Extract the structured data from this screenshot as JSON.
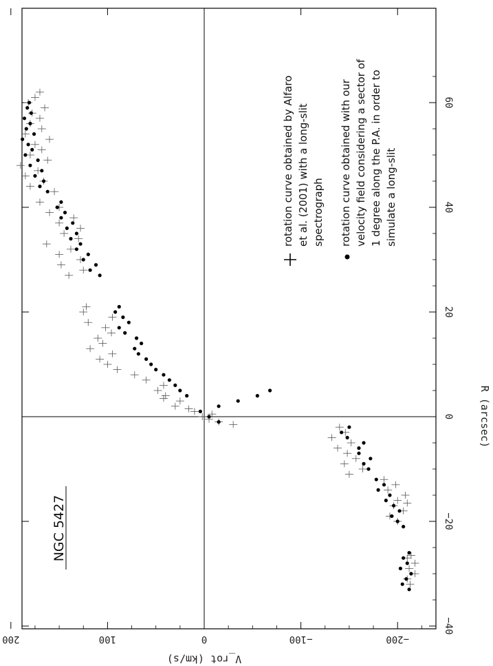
{
  "chart_data": {
    "type": "scatter",
    "title": "NGC 5427",
    "xlabel": "R (arcsec)",
    "ylabel": "V_rot (km/s)",
    "xlim": [
      -40,
      70
    ],
    "ylim": [
      -240,
      200
    ],
    "x_ticks": [
      "−40",
      "−20",
      "0",
      "20",
      "40",
      "60"
    ],
    "x_tick_values": [
      -40,
      -20,
      0,
      20,
      40,
      60
    ],
    "y_ticks": [
      "200",
      "100",
      "0",
      "−100",
      "−200"
    ],
    "y_tick_values": [
      200,
      100,
      0,
      -100,
      -200
    ],
    "legend": {
      "placement": "upper-right",
      "entries": [
        {
          "marker": "cross",
          "lines": [
            "rotation curve obtained by Alfaro",
            "et al. (2001) with a long-slit",
            "spectrograph"
          ]
        },
        {
          "marker": "dot",
          "lines": [
            "rotation curve obtained with our",
            "velocity field considering a sector of",
            "1 degree along the P.A. in order to",
            "simulate a long-slit"
          ]
        }
      ]
    },
    "series": [
      {
        "marker": "cross",
        "points": [
          [
            -32,
            -213
          ],
          [
            -31,
            -210
          ],
          [
            -30,
            -218
          ],
          [
            -29,
            -212
          ],
          [
            -28,
            -218
          ],
          [
            -27,
            -210
          ],
          [
            -26.5,
            -214
          ],
          [
            -20,
            -200
          ],
          [
            -19,
            -192
          ],
          [
            -18,
            -206
          ],
          [
            -17,
            -196
          ],
          [
            -16.5,
            -210
          ],
          [
            -16,
            -200
          ],
          [
            -15,
            -208
          ],
          [
            -14,
            -190
          ],
          [
            -13,
            -198
          ],
          [
            -12,
            -186
          ],
          [
            -11,
            -150
          ],
          [
            -10,
            -164
          ],
          [
            -9,
            -145
          ],
          [
            -8,
            -157
          ],
          [
            -7,
            -148
          ],
          [
            -6,
            -138
          ],
          [
            -5,
            -152
          ],
          [
            -4,
            -132
          ],
          [
            -3,
            -146
          ],
          [
            -2,
            -140
          ],
          [
            -1.5,
            -30
          ],
          [
            -1,
            -15
          ],
          [
            -0.5,
            -5
          ],
          [
            0,
            2
          ],
          [
            0.5,
            -8
          ],
          [
            1,
            10
          ],
          [
            1.5,
            16
          ],
          [
            2,
            30
          ],
          [
            3,
            25
          ],
          [
            3.5,
            42
          ],
          [
            4,
            40
          ],
          [
            5,
            48
          ],
          [
            6,
            42
          ],
          [
            7,
            60
          ],
          [
            8,
            72
          ],
          [
            9,
            90
          ],
          [
            10,
            100
          ],
          [
            11,
            108
          ],
          [
            12,
            95
          ],
          [
            13,
            118
          ],
          [
            14,
            105
          ],
          [
            15,
            110
          ],
          [
            16,
            96
          ],
          [
            17,
            102
          ],
          [
            18,
            120
          ],
          [
            19,
            95
          ],
          [
            20,
            125
          ],
          [
            21,
            122
          ],
          [
            27,
            140
          ],
          [
            28,
            125
          ],
          [
            29,
            148
          ],
          [
            30,
            128
          ],
          [
            31,
            150
          ],
          [
            32,
            138
          ],
          [
            33,
            163
          ],
          [
            34,
            130
          ],
          [
            35,
            145
          ],
          [
            36,
            128
          ],
          [
            37,
            150
          ],
          [
            38,
            135
          ],
          [
            39,
            160
          ],
          [
            40,
            150
          ],
          [
            41,
            170
          ],
          [
            43,
            155
          ],
          [
            44,
            180
          ],
          [
            45,
            166
          ],
          [
            46,
            185
          ],
          [
            47,
            172
          ],
          [
            48,
            190
          ],
          [
            49,
            162
          ],
          [
            50,
            180
          ],
          [
            51,
            168
          ],
          [
            52,
            175
          ],
          [
            53,
            160
          ],
          [
            54,
            185
          ],
          [
            55,
            168
          ],
          [
            56,
            180
          ],
          [
            57,
            170
          ],
          [
            58,
            178
          ],
          [
            59,
            165
          ],
          [
            60,
            182
          ],
          [
            61,
            175
          ],
          [
            62,
            170
          ]
        ]
      },
      {
        "marker": "dot",
        "points": [
          [
            -33,
            -212
          ],
          [
            -32,
            -205
          ],
          [
            -31,
            -209
          ],
          [
            -30,
            -214
          ],
          [
            -29,
            -203
          ],
          [
            -28,
            -210
          ],
          [
            -27,
            -206
          ],
          [
            -26,
            -212
          ],
          [
            -21,
            -206
          ],
          [
            -20,
            -200
          ],
          [
            -19,
            -194
          ],
          [
            -18,
            -202
          ],
          [
            -17,
            -196
          ],
          [
            -16,
            -188
          ],
          [
            -15,
            -192
          ],
          [
            -14,
            -180
          ],
          [
            -13,
            -186
          ],
          [
            -12,
            -178
          ],
          [
            -10,
            -170
          ],
          [
            -9,
            -165
          ],
          [
            -8,
            -172
          ],
          [
            -7,
            -160
          ],
          [
            -6,
            -160
          ],
          [
            -5,
            -165
          ],
          [
            -4,
            -148
          ],
          [
            -3,
            -142
          ],
          [
            -2,
            -150
          ],
          [
            -1,
            -15
          ],
          [
            0,
            -5
          ],
          [
            1,
            4
          ],
          [
            2,
            -15
          ],
          [
            3,
            -35
          ],
          [
            4,
            -55
          ],
          [
            5,
            -68
          ],
          [
            4,
            18
          ],
          [
            5,
            25
          ],
          [
            6,
            30
          ],
          [
            7,
            36
          ],
          [
            8,
            42
          ],
          [
            9,
            50
          ],
          [
            10,
            55
          ],
          [
            11,
            60
          ],
          [
            12,
            68
          ],
          [
            13,
            72
          ],
          [
            14,
            65
          ],
          [
            15,
            70
          ],
          [
            16,
            82
          ],
          [
            17,
            88
          ],
          [
            18,
            78
          ],
          [
            19,
            84
          ],
          [
            20,
            92
          ],
          [
            21,
            88
          ],
          [
            27,
            108
          ],
          [
            28,
            118
          ],
          [
            29,
            112
          ],
          [
            30,
            125
          ],
          [
            31,
            120
          ],
          [
            32,
            132
          ],
          [
            33,
            128
          ],
          [
            34,
            138
          ],
          [
            35,
            132
          ],
          [
            36,
            142
          ],
          [
            37,
            136
          ],
          [
            38,
            148
          ],
          [
            39,
            144
          ],
          [
            40,
            152
          ],
          [
            41,
            148
          ],
          [
            43,
            162
          ],
          [
            44,
            170
          ],
          [
            45,
            166
          ],
          [
            46,
            175
          ],
          [
            47,
            168
          ],
          [
            48,
            180
          ],
          [
            49,
            172
          ],
          [
            50,
            185
          ],
          [
            51,
            178
          ],
          [
            52,
            182
          ],
          [
            53,
            188
          ],
          [
            54,
            176
          ],
          [
            55,
            184
          ],
          [
            56,
            180
          ],
          [
            57,
            186
          ],
          [
            58,
            179
          ],
          [
            59,
            183
          ],
          [
            60,
            181
          ]
        ]
      }
    ]
  }
}
